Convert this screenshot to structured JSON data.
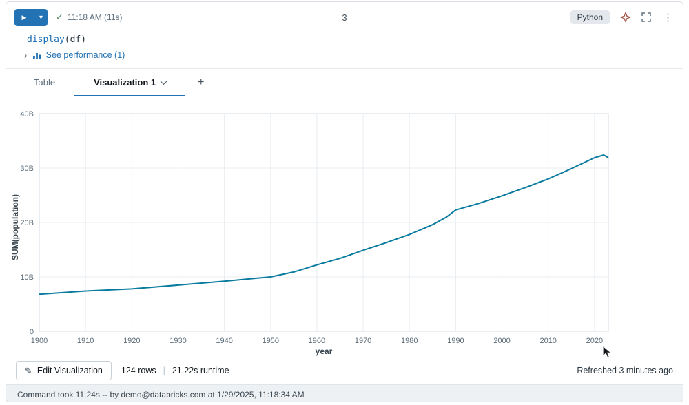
{
  "header": {
    "time": "11:18 AM (11s)",
    "cell_number": "3",
    "language_badge": "Python"
  },
  "icons": {
    "play": "▶",
    "chevron_down": "▾",
    "check": "✓",
    "kebab": "⋮",
    "chevron_right": "›",
    "pencil": "✎",
    "plus": "+"
  },
  "code": {
    "fn": "display",
    "open": "(",
    "arg": "df",
    "close": ")"
  },
  "performance": {
    "link": "See performance (1)"
  },
  "tabs": {
    "table": "Table",
    "visualization": "Visualization 1"
  },
  "chart_data": {
    "type": "line",
    "title": "",
    "xlabel": "year",
    "ylabel": "SUM(population)",
    "xlim": [
      1900,
      2023
    ],
    "ylim": [
      0,
      40000000000
    ],
    "ylim_billions": [
      0,
      40
    ],
    "xticks": [
      1900,
      1910,
      1920,
      1930,
      1940,
      1950,
      1960,
      1970,
      1980,
      1990,
      2000,
      2010,
      2020
    ],
    "yticks": [
      {
        "value": 0,
        "label": "0"
      },
      {
        "value": 10,
        "label": "10B"
      },
      {
        "value": 20,
        "label": "20B"
      },
      {
        "value": 30,
        "label": "30B"
      },
      {
        "value": 40,
        "label": "40B"
      }
    ],
    "grid": true,
    "legend": "none",
    "line_color": "#077a9d",
    "x": [
      1900,
      1910,
      1920,
      1930,
      1940,
      1950,
      1955,
      1960,
      1965,
      1970,
      1975,
      1980,
      1985,
      1988,
      1990,
      1995,
      2000,
      2005,
      2010,
      2015,
      2020,
      2022,
      2023
    ],
    "series": [
      {
        "name": "SUM(population)",
        "values_billions": [
          6.8,
          7.4,
          7.8,
          8.5,
          9.2,
          10.0,
          10.9,
          12.2,
          13.4,
          14.9,
          16.3,
          17.8,
          19.6,
          21.0,
          22.3,
          23.5,
          24.9,
          26.4,
          28.0,
          29.9,
          31.9,
          32.4,
          31.9
        ]
      }
    ]
  },
  "footer": {
    "edit_button": "Edit Visualization",
    "rows": "124 rows",
    "divider": "|",
    "runtime": "21.22s runtime",
    "refreshed": "Refreshed 3 minutes ago"
  },
  "status": {
    "text": "Command took 11.24s -- by demo@databricks.com at 1/29/2025, 11:18:34 AM"
  }
}
